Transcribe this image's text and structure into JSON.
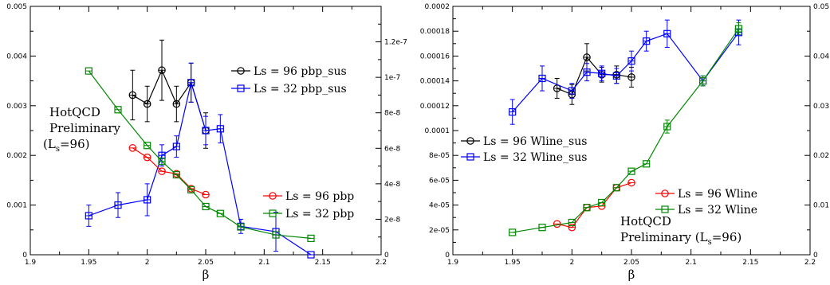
{
  "colors": {
    "black": "#000000",
    "red": "#ff0000",
    "blue": "#0000ff",
    "green": "#008800"
  },
  "chart_data": [
    {
      "type": "line",
      "xlabel": "β",
      "xlim": [
        1.9,
        2.2
      ],
      "x_ticks": [
        "1.9",
        "1.95",
        "2",
        "2.05",
        "2.1",
        "2.15",
        "2.2"
      ],
      "ylim_left": [
        0,
        0.005
      ],
      "y_ticks_left": [
        "0",
        "0.001",
        "0.002",
        "0.003",
        "0.004",
        "0.005"
      ],
      "ylim_right": [
        0,
        1.4e-07
      ],
      "y_ticks_right": [
        "0",
        "2e-8",
        "4e-8",
        "6e-8",
        "8e-8",
        "1e-7",
        "1.2e-7"
      ],
      "annotation": {
        "line1": "HotQCD",
        "line2": "Preliminary",
        "line3_pre": "(L",
        "line3_sub": "s",
        "line3_post": "=96)"
      },
      "legends": [
        {
          "entries": [
            "Ls = 96 pbp_sus",
            "Ls = 32 pbp_sus"
          ],
          "placement": "upper-right"
        },
        {
          "entries": [
            "Ls = 96 pbp",
            "Ls = 32 pbp"
          ],
          "placement": "middle-right"
        }
      ],
      "series": [
        {
          "name": "Ls = 96 pbp_sus",
          "color": "#000000",
          "marker": "circle",
          "axis": "right",
          "x": [
            1.9875,
            2.0,
            2.0125,
            2.025,
            2.0375,
            2.05
          ],
          "y": [
            9e-08,
            8.5e-08,
            1.04e-07,
            8.5e-08,
            9.7e-08,
            7e-08
          ],
          "err": [
            1.4e-08,
            1e-08,
            1.7e-08,
            1e-08,
            1.1e-08,
            1e-08
          ]
        },
        {
          "name": "Ls = 32 pbp_sus",
          "color": "#0000ff",
          "marker": "square",
          "axis": "right",
          "x": [
            1.95,
            1.975,
            2.0,
            2.0125,
            2.025,
            2.0375,
            2.05,
            2.0625,
            2.08,
            2.11,
            2.14
          ],
          "y": [
            2.2e-08,
            2.8e-08,
            3.1e-08,
            5.6e-08,
            6.1e-08,
            9.7e-08,
            7e-08,
            7.1e-08,
            1.6e-08,
            1.3e-08,
            0.0
          ],
          "err": [
            6e-09,
            7e-09,
            9e-09,
            6e-09,
            6e-09,
            1.1e-08,
            8e-09,
            8e-09,
            4e-09,
            1.1e-08,
            0.0
          ]
        },
        {
          "name": "Ls = 96 pbp",
          "color": "#ff0000",
          "marker": "circle",
          "axis": "left",
          "x": [
            1.9875,
            2.0,
            2.0125,
            2.025,
            2.0375,
            2.05
          ],
          "y": [
            0.00215,
            0.00196,
            0.00168,
            0.00163,
            0.00133,
            0.00121
          ],
          "err": [
            0,
            0,
            0,
            0,
            0,
            0
          ]
        },
        {
          "name": "Ls = 32 pbp",
          "color": "#008800",
          "marker": "square",
          "axis": "left",
          "x": [
            1.95,
            1.975,
            2.0,
            2.0125,
            2.025,
            2.0375,
            2.05,
            2.0625,
            2.08,
            2.11,
            2.14
          ],
          "y": [
            0.0037,
            0.00292,
            0.0022,
            0.00188,
            0.00161,
            0.00131,
            0.00097,
            0.00083,
            0.00056,
            0.0004,
            0.00033
          ],
          "err": [
            0,
            0,
            0,
            0,
            0,
            0,
            0,
            0,
            0,
            0,
            0
          ]
        }
      ]
    },
    {
      "type": "line",
      "xlabel": "β",
      "xlim": [
        1.9,
        2.2
      ],
      "x_ticks": [
        "1.9",
        "1.95",
        "2",
        "2.05",
        "2.1",
        "2.15",
        "2.2"
      ],
      "ylim_left": [
        0,
        0.0002
      ],
      "y_ticks_left": [
        "0",
        "2e-05",
        "4e-05",
        "6e-05",
        "8e-05",
        "0.0001",
        "0.00012",
        "0.00014",
        "0.00016",
        "0.00018",
        "0.0002"
      ],
      "ylim_right": [
        0,
        0.05
      ],
      "y_ticks_right": [
        "0",
        "0.01",
        "0.02",
        "0.03",
        "0.04",
        "0.05"
      ],
      "annotation": {
        "line1": "HotQCD",
        "line2_pre": "Preliminary (L",
        "line2_sub": "s",
        "line2_post": "=96)"
      },
      "legends": [
        {
          "entries": [
            "Ls = 96 Wline_sus",
            "Ls = 32 Wline_sus"
          ],
          "placement": "middle-left"
        },
        {
          "entries": [
            "Ls = 96 Wline",
            "Ls = 32 Wline"
          ],
          "placement": "middle-right"
        }
      ],
      "series": [
        {
          "name": "Ls = 96 Wline_sus",
          "color": "#000000",
          "marker": "circle",
          "axis": "left",
          "x": [
            1.9875,
            2.0,
            2.0125,
            2.025,
            2.0375,
            2.05
          ],
          "y": [
            0.000134,
            0.000129,
            0.000159,
            0.000145,
            0.000145,
            0.000143
          ],
          "err": [
            8e-06,
            8e-06,
            1.1e-05,
            6e-06,
            7e-06,
            8e-06
          ]
        },
        {
          "name": "Ls = 32 Wline_sus",
          "color": "#0000ff",
          "marker": "square",
          "axis": "left",
          "x": [
            1.95,
            1.975,
            2.0,
            2.0125,
            2.025,
            2.0375,
            2.05,
            2.0625,
            2.08,
            2.11,
            2.14
          ],
          "y": [
            0.000115,
            0.000142,
            0.000132,
            0.000147,
            0.000146,
            0.000144,
            0.000156,
            0.000172,
            0.000178,
            0.00014,
            0.000179
          ],
          "err": [
            1e-05,
            1e-05,
            6e-06,
            7e-06,
            6e-06,
            6e-06,
            8e-06,
            8e-06,
            1.1e-05,
            4e-06,
            1e-05
          ]
        },
        {
          "name": "Ls = 96 Wline",
          "color": "#ff0000",
          "marker": "circle",
          "axis": "right",
          "x": [
            1.9875,
            2.0,
            2.0125,
            2.025,
            2.0375,
            2.05
          ],
          "y": [
            0.0062,
            0.0055,
            0.0095,
            0.0098,
            0.0135,
            0.0145
          ],
          "err": [
            0,
            0,
            0,
            0,
            0,
            0
          ]
        },
        {
          "name": "Ls = 32 Wline",
          "color": "#008800",
          "marker": "square",
          "axis": "right",
          "x": [
            1.95,
            1.975,
            2.0,
            2.0125,
            2.025,
            2.0375,
            2.05,
            2.0625,
            2.08,
            2.11,
            2.14
          ],
          "y": [
            0.0045,
            0.0055,
            0.0065,
            0.0095,
            0.0105,
            0.0135,
            0.0168,
            0.0183,
            0.0258,
            0.035,
            0.0455
          ],
          "err": [
            0,
            0,
            0,
            0,
            0,
            0,
            0,
            0,
            0.0013,
            0.001,
            0.0012
          ]
        }
      ]
    }
  ]
}
